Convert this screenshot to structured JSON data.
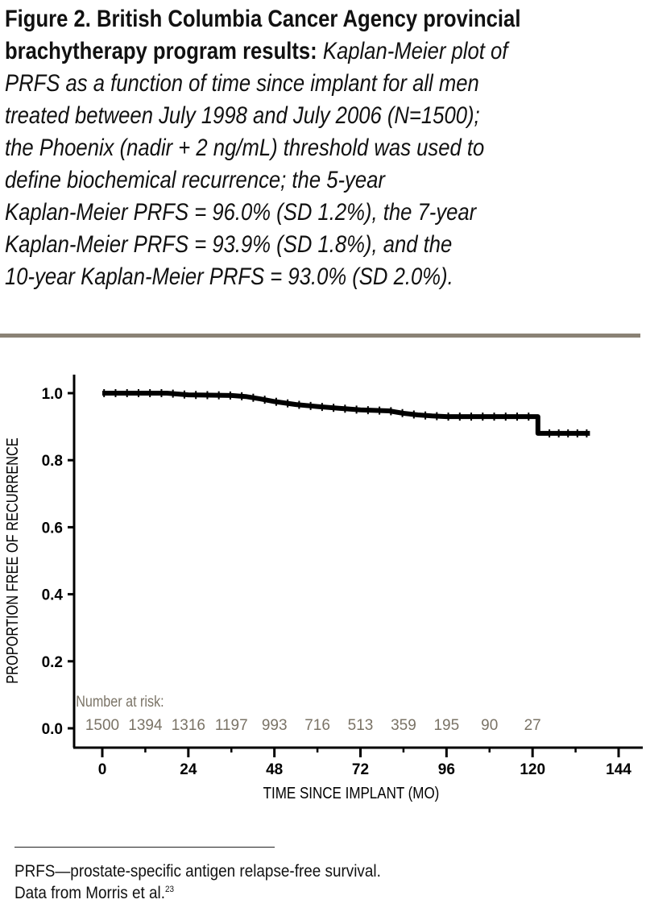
{
  "caption": {
    "lines": [
      [
        {
          "t": "Figure 2. ",
          "s": "b"
        },
        {
          "t": "British Columbia Cancer Agency provincial",
          "s": "b"
        }
      ],
      [
        {
          "t": "brachytherapy program results: ",
          "s": "b"
        },
        {
          "t": "Kaplan-Meier plot of",
          "s": "i"
        }
      ],
      [
        {
          "t": "PRFS as a function of time since implant for all men",
          "s": "i"
        }
      ],
      [
        {
          "t": "treated between July 1998 and July 2006 (N=1500);",
          "s": "i"
        }
      ],
      [
        {
          "t": "the Phoenix (nadir + 2 ng/mL) threshold was used to",
          "s": "i"
        }
      ],
      [
        {
          "t": "define biochemical recurrence; the 5-year",
          "s": "i"
        }
      ],
      [
        {
          "t": "Kaplan-Meier PRFS = 96.0% (SD 1.2%), the 7-year",
          "s": "i"
        }
      ],
      [
        {
          "t": "Kaplan-Meier PRFS = 93.9% (SD 1.8%), and the",
          "s": "i"
        }
      ],
      [
        {
          "t": "10-year Kaplan-Meier PRFS = 93.0% (SD 2.0%).",
          "s": "i"
        }
      ]
    ]
  },
  "chart_data": {
    "type": "line",
    "subtype": "kaplan-meier",
    "xlabel": "TIME SINCE IMPLANT (MO)",
    "ylabel": "PROPORTION FREE OF RECURRENCE",
    "xlim": [
      0,
      144
    ],
    "ylim": [
      0,
      1.0
    ],
    "xticks": [
      0,
      24,
      48,
      72,
      96,
      120,
      144
    ],
    "xminor_ticks": [
      12,
      36,
      60,
      84,
      108,
      132
    ],
    "yticks": [
      "0.0",
      "0.2",
      "0.4",
      "0.6",
      "0.8",
      "1.0"
    ],
    "grid": false,
    "line_color": "#000000",
    "series": [
      {
        "x": [
          0,
          18,
          24,
          36,
          40,
          44,
          48,
          54,
          60,
          66,
          72,
          80,
          84,
          88,
          92,
          96,
          110,
          121.5,
          121.5,
          136
        ],
        "y": [
          1.0,
          1.0,
          0.995,
          0.993,
          0.99,
          0.983,
          0.975,
          0.966,
          0.96,
          0.955,
          0.95,
          0.947,
          0.94,
          0.935,
          0.932,
          0.93,
          0.93,
          0.93,
          0.88,
          0.88
        ]
      }
    ],
    "risk_table": {
      "label": "Number at risk:",
      "color": "#7a7366",
      "times": [
        0,
        12,
        24,
        36,
        48,
        60,
        72,
        84,
        96,
        108,
        120
      ],
      "counts": [
        "1500",
        "1394",
        "1316",
        "1197",
        "993",
        "716",
        "513",
        "359",
        "195",
        "90",
        "27"
      ]
    }
  },
  "footnote": {
    "line1": "PRFS—prostate-specific antigen relapse-free survival.",
    "line2": "Data from Morris et al.",
    "ref": "23"
  }
}
